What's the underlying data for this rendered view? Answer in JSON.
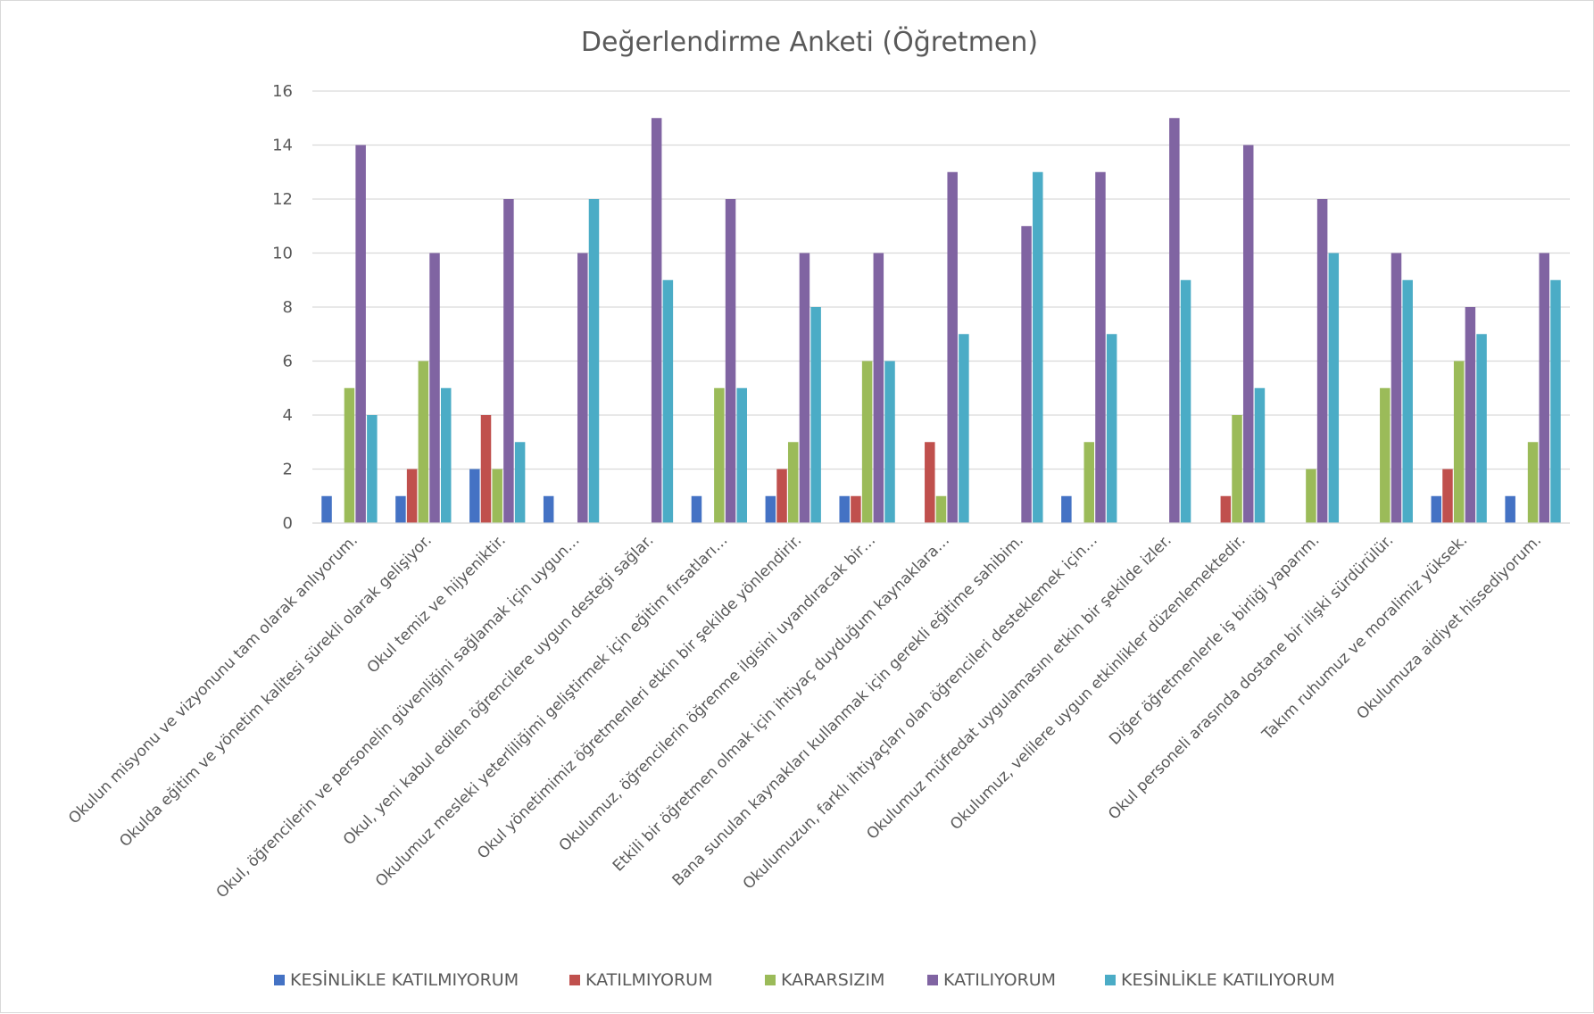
{
  "chart_data": {
    "type": "bar",
    "title": "Değerlendirme Anketi (Öğretmen)",
    "xlabel": "",
    "ylabel": "",
    "ylim": [
      0,
      16
    ],
    "yticks": [
      0,
      2,
      4,
      6,
      8,
      10,
      12,
      14,
      16
    ],
    "grid": true,
    "legend_position": "bottom",
    "categories": [
      "Okulun misyonu ve vizyonunu tam olarak anlıyorum.",
      "Okulda eğitim ve yönetim kalitesi sürekli olarak gelişiyor.",
      "Okul temiz ve hijyeniktir.",
      "Okul, öğrencilerin ve personelin güvenliğini sağlamak için uygun…",
      "Okul, yeni kabul edilen öğrencilere uygun desteği sağlar.",
      "Okulumuz mesleki yeterliliğimi geliştirmek için eğitim fırsatları…",
      "Okul yönetimimiz öğretmenleri etkin bir şekilde yönlendirir.",
      "Okulumuz, öğrencilerin öğrenme ilgisini uyandıracak bir…",
      "Etkili bir öğretmen olmak için ihtiyaç duyduğum kaynaklara…",
      "Bana sunulan kaynakları kullanmak için gerekli eğitime sahibim.",
      "Okulumuzun, farklı ihtiyaçları olan öğrencileri desteklemek için…",
      "Okulumuz müfredat uygulamasını etkin bir şekilde izler.",
      "Okulumuz, velilere uygun etkinlikler düzenlemektedir.",
      "Diğer öğretmenlerle iş birliği yaparım.",
      "Okul personeli arasında dostane bir ilişki sürdürülür.",
      "Takım ruhumuz ve moralimiz yüksek.",
      "Okulumuza aidiyet hissediyorum."
    ],
    "series": [
      {
        "name": "KESİNLİKLE KATILMIYORUM",
        "color": "#4472C4",
        "values": [
          1,
          1,
          2,
          1,
          0,
          1,
          1,
          1,
          0,
          0,
          1,
          0,
          0,
          0,
          0,
          1,
          1
        ]
      },
      {
        "name": "KATILMIYORUM",
        "color": "#C0504D",
        "values": [
          0,
          2,
          4,
          0,
          0,
          0,
          2,
          1,
          3,
          0,
          0,
          0,
          1,
          0,
          0,
          2,
          0
        ]
      },
      {
        "name": "KARARSIZIM",
        "color": "#9BBB59",
        "values": [
          5,
          6,
          2,
          0,
          0,
          5,
          3,
          6,
          1,
          0,
          3,
          0,
          4,
          2,
          5,
          6,
          3
        ]
      },
      {
        "name": "KATILIYORUM",
        "color": "#8064A2",
        "values": [
          14,
          10,
          12,
          10,
          15,
          12,
          10,
          10,
          13,
          11,
          13,
          15,
          14,
          12,
          10,
          8,
          10
        ]
      },
      {
        "name": "KESİNLİKLE KATILIYORUM",
        "color": "#4BACC6",
        "values": [
          4,
          5,
          3,
          12,
          9,
          5,
          8,
          6,
          7,
          13,
          7,
          9,
          5,
          10,
          9,
          7,
          9
        ]
      }
    ]
  }
}
